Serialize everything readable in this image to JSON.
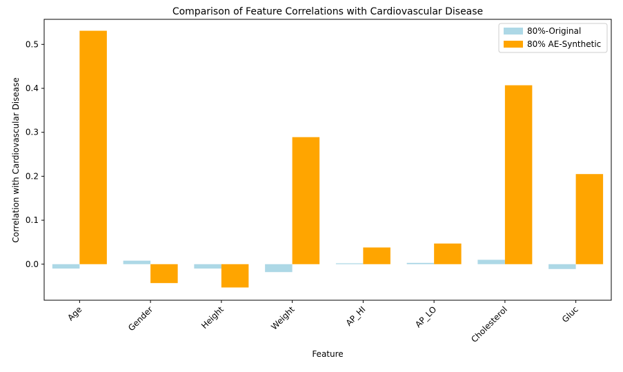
{
  "chart_data": {
    "type": "bar",
    "title": "Comparison of Feature Correlations with Cardiovascular Disease",
    "xlabel": "Feature",
    "ylabel": "Correlation with Cardiovascular Disease",
    "categories": [
      "Age",
      "Gender",
      "Height",
      "Weight",
      "AP_HI",
      "AP_LO",
      "Cholesterol",
      "Gluc"
    ],
    "series": [
      {
        "name": "80%-Original",
        "color": "#add8e6",
        "values": [
          -0.01,
          0.008,
          -0.01,
          -0.018,
          0.002,
          0.003,
          0.01,
          -0.011
        ]
      },
      {
        "name": "80% AE-Synthetic",
        "color": "#ffa500",
        "values": [
          0.531,
          -0.043,
          -0.053,
          0.289,
          0.038,
          0.047,
          0.407,
          0.205
        ]
      }
    ],
    "ylim": [
      -0.082,
      0.557
    ],
    "yticks": [
      0.0,
      0.1,
      0.2,
      0.3,
      0.4,
      0.5
    ],
    "ytick_labels": [
      "0.0",
      "0.1",
      "0.2",
      "0.3",
      "0.4",
      "0.5"
    ],
    "legend_position": "upper right",
    "grid": false
  }
}
